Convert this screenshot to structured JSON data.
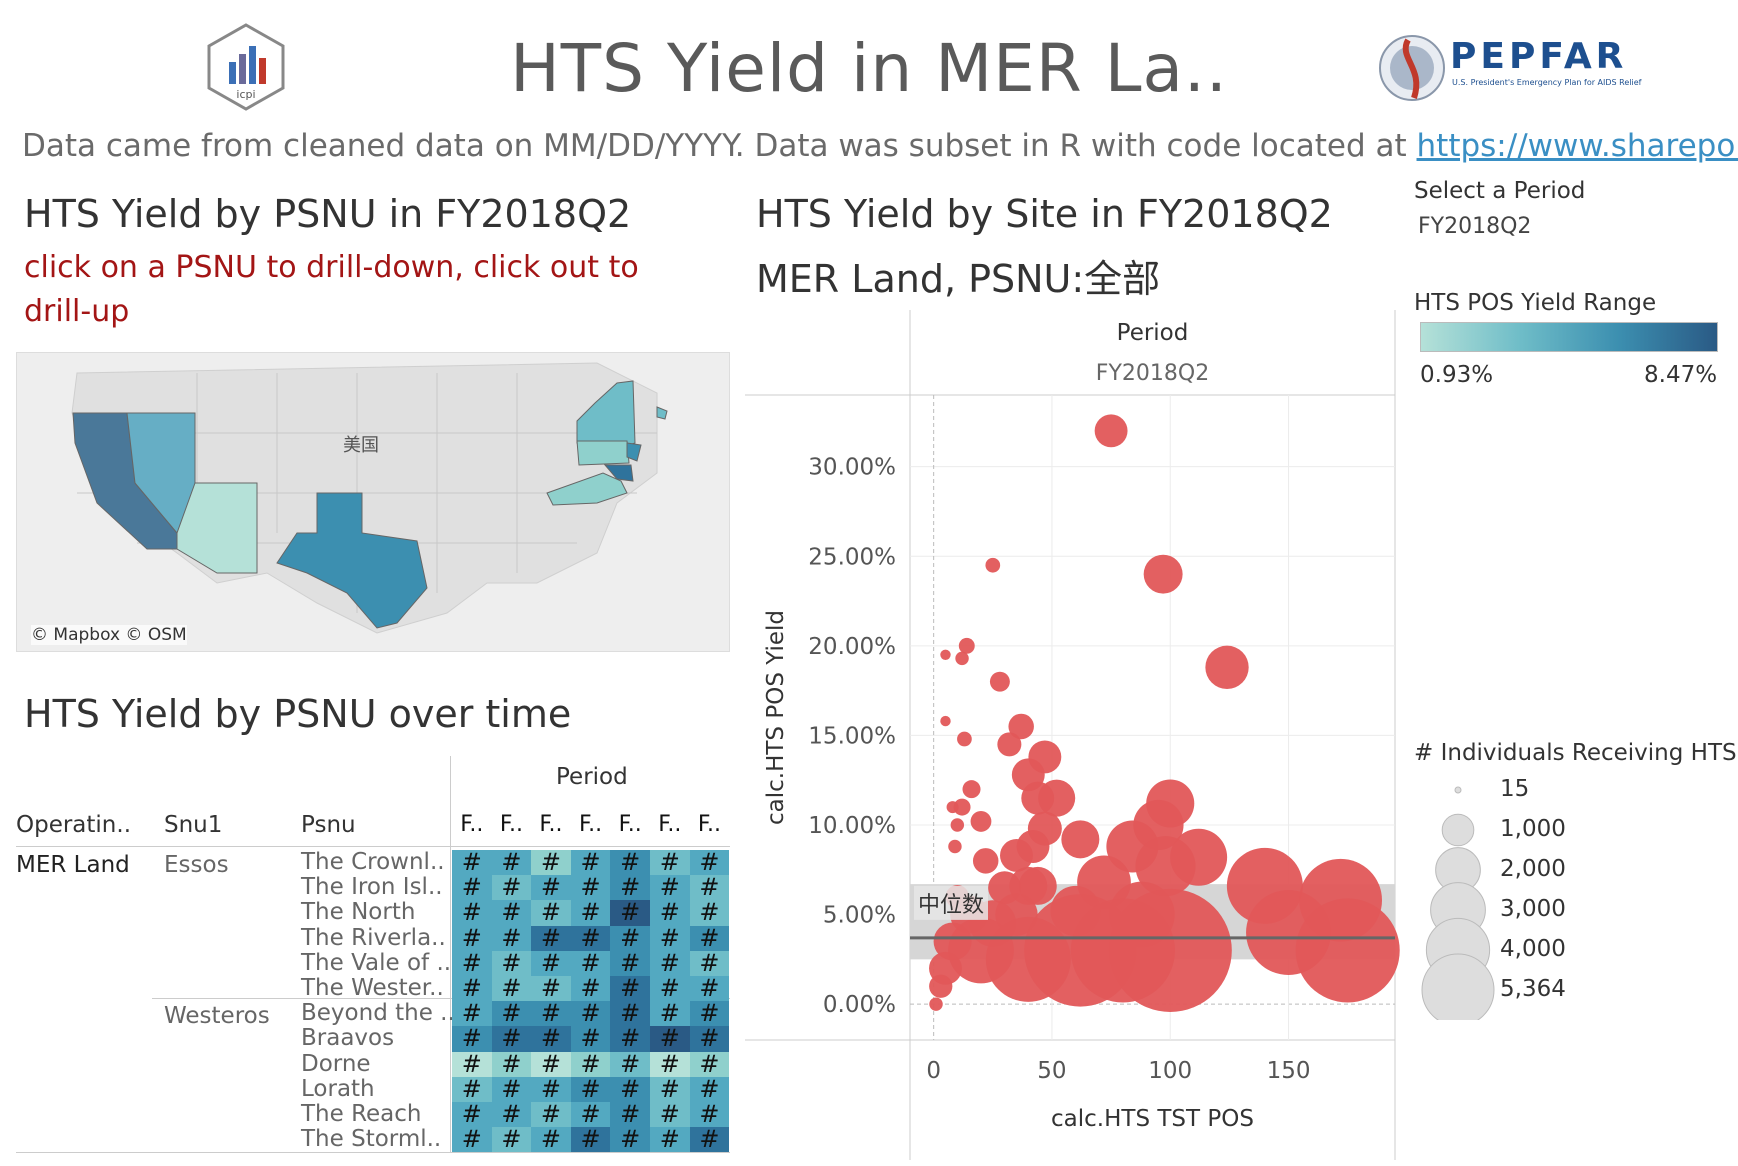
{
  "header": {
    "title": "HTS Yield in MER La..",
    "subtitle_prefix": "Data came from cleaned data on MM/DD/YYYY. Data was subset in R with code located at ",
    "subtitle_link": "https://www.sharepoi..",
    "icpi_logo_text": "icpi",
    "pepfar_logo_text": "PEPFAR",
    "pepfar_logo_sub": "U.S. President's Emergency Plan for AIDS Relief"
  },
  "map_section": {
    "title": "HTS Yield by PSNU in FY2018Q2",
    "note": "click on a PSNU to drill-down, click out to drill-up",
    "country_label": "美国",
    "credit": "© Mapbox © OSM"
  },
  "table_section": {
    "title": "HTS Yield by PSNU over time",
    "period_header": "Period",
    "col_headers": [
      "Operatin..",
      "Snu1",
      "Psnu"
    ],
    "period_cols": [
      "F..",
      "F..",
      "F..",
      "F..",
      "F..",
      "F..",
      "F.."
    ],
    "cell_text": "#",
    "operating_unit": "MER Land",
    "groups": [
      {
        "snu1": "Essos",
        "psnus": [
          "The Crownl..",
          "The Iron Isl..",
          "The North",
          "The Riverla..",
          "The Vale of ..",
          "The Wester.."
        ]
      },
      {
        "snu1": "Westeros",
        "psnus": [
          "Beyond the ..",
          "Braavos",
          "Dorne",
          "Lorath",
          "The Reach",
          "The Storml.."
        ]
      }
    ],
    "heat_colors": [
      "#b5e1d8",
      "#8fd0cc",
      "#6fbdc8",
      "#53a9c1",
      "#3c8fb0",
      "#2f739c",
      "#2a5a85"
    ],
    "heat_levels": [
      [
        3,
        3,
        1,
        3,
        4,
        2,
        3
      ],
      [
        3,
        2,
        3,
        3,
        4,
        3,
        2
      ],
      [
        3,
        3,
        2,
        3,
        6,
        3,
        2
      ],
      [
        3,
        3,
        5,
        5,
        4,
        3,
        4
      ],
      [
        3,
        2,
        3,
        3,
        4,
        3,
        2
      ],
      [
        3,
        2,
        2,
        3,
        5,
        3,
        3
      ],
      [
        3,
        4,
        4,
        4,
        5,
        3,
        4
      ],
      [
        4,
        5,
        5,
        4,
        5,
        6,
        5
      ],
      [
        0,
        1,
        0,
        1,
        2,
        0,
        1
      ],
      [
        2,
        3,
        3,
        4,
        4,
        2,
        3
      ],
      [
        3,
        3,
        2,
        3,
        4,
        2,
        3
      ],
      [
        3,
        2,
        3,
        5,
        4,
        3,
        5
      ]
    ]
  },
  "scatter_section": {
    "title": "HTS Yield by Site in FY2018Q2",
    "subtitle": "MER Land, PSNU:全部",
    "median_label": "中位数",
    "dot_color": "#e15759"
  },
  "chart_data": {
    "type": "scatter",
    "title": "HTS Yield by Site in FY2018Q2",
    "facet_header": "Period",
    "facet_value": "FY2018Q2",
    "xlabel": "calc.HTS TST POS",
    "ylabel": "calc.HTS POS Yield",
    "x_ticks": [
      "0",
      "50",
      "100",
      "150"
    ],
    "y_ticks": [
      "0.00%",
      "5.00%",
      "10.00%",
      "15.00%",
      "20.00%",
      "25.00%",
      "30.00%"
    ],
    "xlim": [
      -10,
      195
    ],
    "ylim": [
      -0.02,
      0.34
    ],
    "median": 0.037,
    "band": [
      0.025,
      0.067
    ],
    "points": [
      {
        "x": 75,
        "y": 0.32,
        "n": 300
      },
      {
        "x": 97,
        "y": 0.24,
        "n": 420
      },
      {
        "x": 124,
        "y": 0.188,
        "n": 520
      },
      {
        "x": 25,
        "y": 0.245,
        "n": 60
      },
      {
        "x": 14,
        "y": 0.2,
        "n": 70
      },
      {
        "x": 12,
        "y": 0.193,
        "n": 50
      },
      {
        "x": 28,
        "y": 0.18,
        "n": 110
      },
      {
        "x": 5,
        "y": 0.195,
        "n": 30
      },
      {
        "x": 5,
        "y": 0.158,
        "n": 30
      },
      {
        "x": 37,
        "y": 0.155,
        "n": 180
      },
      {
        "x": 32,
        "y": 0.145,
        "n": 160
      },
      {
        "x": 13,
        "y": 0.148,
        "n": 60
      },
      {
        "x": 47,
        "y": 0.138,
        "n": 300
      },
      {
        "x": 40,
        "y": 0.128,
        "n": 300
      },
      {
        "x": 44,
        "y": 0.115,
        "n": 300
      },
      {
        "x": 52,
        "y": 0.115,
        "n": 380
      },
      {
        "x": 100,
        "y": 0.112,
        "n": 640
      },
      {
        "x": 95,
        "y": 0.1,
        "n": 700
      },
      {
        "x": 16,
        "y": 0.12,
        "n": 90
      },
      {
        "x": 12,
        "y": 0.11,
        "n": 80
      },
      {
        "x": 20,
        "y": 0.102,
        "n": 120
      },
      {
        "x": 47,
        "y": 0.098,
        "n": 320
      },
      {
        "x": 62,
        "y": 0.092,
        "n": 400
      },
      {
        "x": 84,
        "y": 0.088,
        "n": 750
      },
      {
        "x": 112,
        "y": 0.082,
        "n": 900
      },
      {
        "x": 98,
        "y": 0.077,
        "n": 1000
      },
      {
        "x": 42,
        "y": 0.088,
        "n": 300
      },
      {
        "x": 35,
        "y": 0.083,
        "n": 300
      },
      {
        "x": 22,
        "y": 0.08,
        "n": 180
      },
      {
        "x": 8,
        "y": 0.11,
        "n": 40
      },
      {
        "x": 10,
        "y": 0.1,
        "n": 50
      },
      {
        "x": 9,
        "y": 0.088,
        "n": 50
      },
      {
        "x": 72,
        "y": 0.068,
        "n": 800
      },
      {
        "x": 140,
        "y": 0.066,
        "n": 1600
      },
      {
        "x": 172,
        "y": 0.058,
        "n": 1900
      },
      {
        "x": 40,
        "y": 0.066,
        "n": 400
      },
      {
        "x": 44,
        "y": 0.066,
        "n": 400
      },
      {
        "x": 30,
        "y": 0.065,
        "n": 300
      },
      {
        "x": 60,
        "y": 0.052,
        "n": 700
      },
      {
        "x": 88,
        "y": 0.05,
        "n": 1200
      },
      {
        "x": 35,
        "y": 0.05,
        "n": 500
      },
      {
        "x": 150,
        "y": 0.04,
        "n": 2000
      },
      {
        "x": 175,
        "y": 0.03,
        "n": 3000
      },
      {
        "x": 100,
        "y": 0.03,
        "n": 4200
      },
      {
        "x": 62,
        "y": 0.03,
        "n": 3500
      },
      {
        "x": 40,
        "y": 0.025,
        "n": 2000
      },
      {
        "x": 80,
        "y": 0.03,
        "n": 3000
      },
      {
        "x": 20,
        "y": 0.03,
        "n": 1200
      },
      {
        "x": 8,
        "y": 0.035,
        "n": 400
      },
      {
        "x": 5,
        "y": 0.02,
        "n": 300
      },
      {
        "x": 3,
        "y": 0.01,
        "n": 150
      },
      {
        "x": 1,
        "y": 0.0,
        "n": 50
      },
      {
        "x": 15,
        "y": 0.05,
        "n": 400
      },
      {
        "x": 25,
        "y": 0.045,
        "n": 600
      },
      {
        "x": 10,
        "y": 0.06,
        "n": 150
      }
    ]
  },
  "filters": {
    "period_label": "Select a Period",
    "period_value": "FY2018Q2",
    "yield_range_label": "HTS POS Yield Range",
    "yield_range_min": "0.93%",
    "yield_range_max": "8.47%",
    "size_legend_label": "# Individuals Receiving HTS",
    "size_legend": [
      {
        "label": "15",
        "n": 15
      },
      {
        "label": "1,000",
        "n": 1000
      },
      {
        "label": "2,000",
        "n": 2000
      },
      {
        "label": "3,000",
        "n": 3000
      },
      {
        "label": "4,000",
        "n": 4000
      },
      {
        "label": "5,364",
        "n": 5364
      }
    ]
  }
}
